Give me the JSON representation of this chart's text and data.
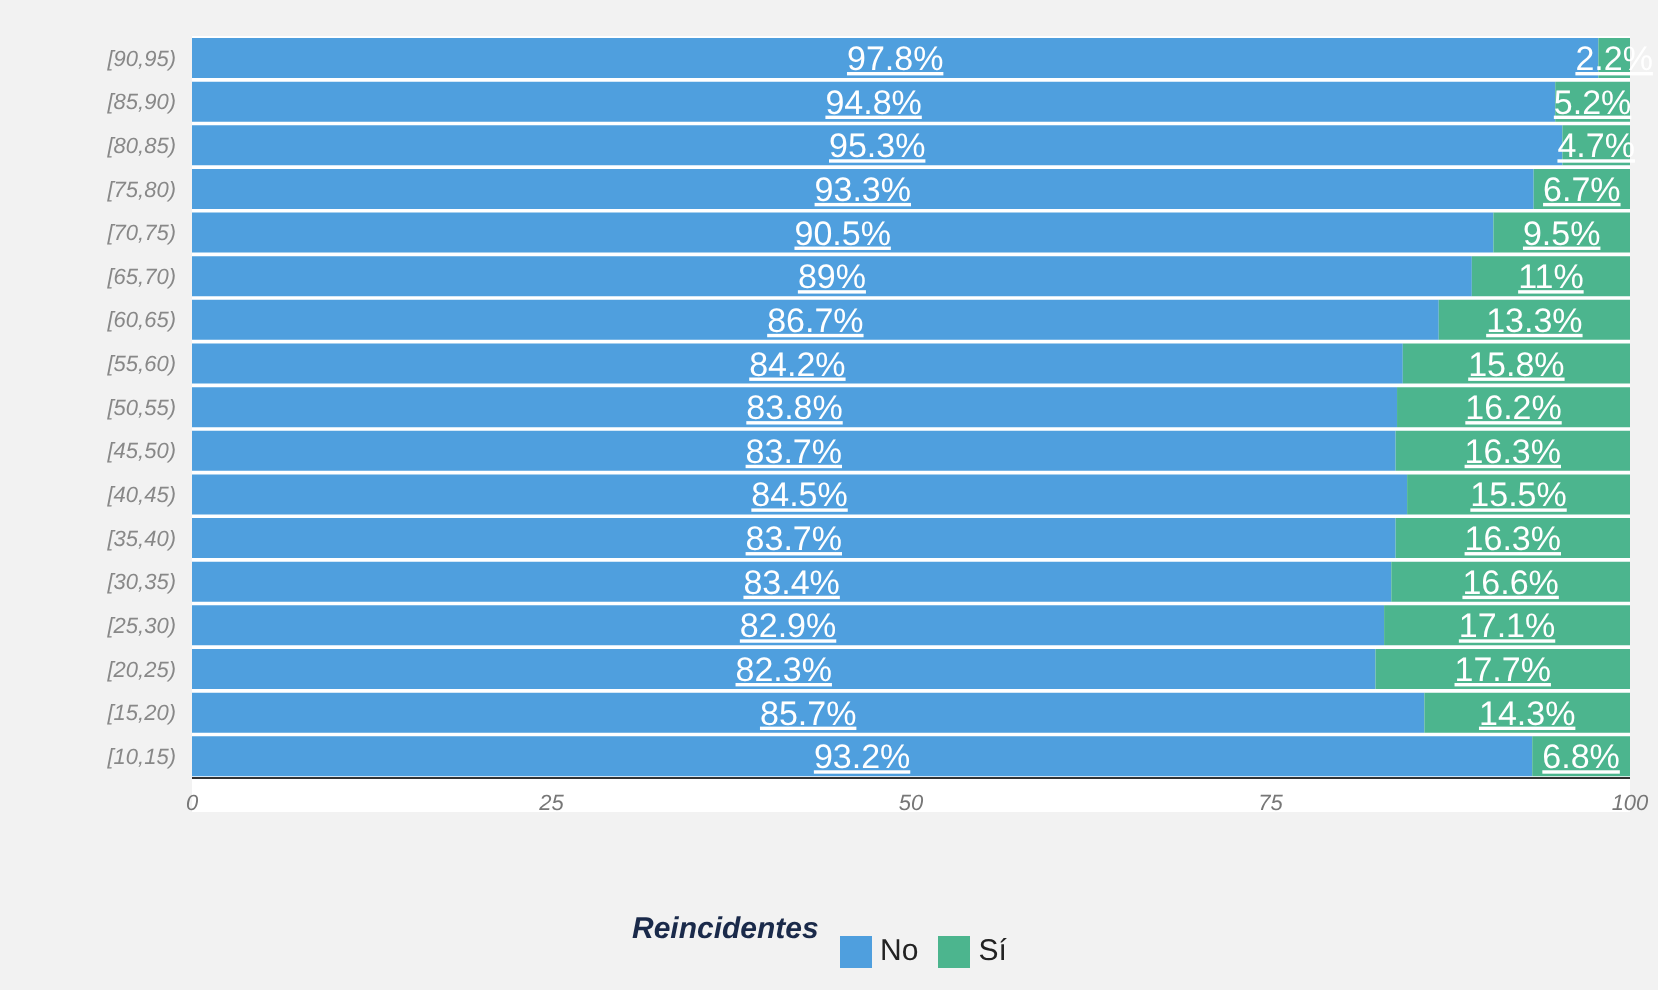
{
  "chart_data": {
    "type": "bar",
    "orientation": "horizontal",
    "stacked": true,
    "categories": [
      "[90,95)",
      "[85,90)",
      "[80,85)",
      "[75,80)",
      "[70,75)",
      "[65,70)",
      "[60,65)",
      "[55,60)",
      "[50,55)",
      "[45,50)",
      "[40,45)",
      "[35,40)",
      "[30,35)",
      "[25,30)",
      "[20,25)",
      "[15,20)",
      "[10,15)"
    ],
    "series": [
      {
        "name": "No",
        "color": "#4f9fde",
        "values": [
          97.8,
          94.8,
          95.3,
          93.3,
          90.5,
          89,
          86.7,
          84.2,
          83.8,
          83.7,
          84.5,
          83.7,
          83.4,
          82.9,
          82.3,
          85.7,
          93.2
        ],
        "value_labels": [
          "97.8%",
          "94.8%",
          "95.3%",
          "93.3%",
          "90.5%",
          "89%",
          "86.7%",
          "84.2%",
          "83.8%",
          "83.7%",
          "84.5%",
          "83.7%",
          "83.4%",
          "82.9%",
          "82.3%",
          "85.7%",
          "93.2%"
        ]
      },
      {
        "name": "Sí",
        "color": "#4cb58e",
        "values": [
          2.2,
          5.2,
          4.7,
          6.7,
          9.5,
          11,
          13.3,
          15.8,
          16.2,
          16.3,
          15.5,
          16.3,
          16.6,
          17.1,
          17.7,
          14.3,
          6.8
        ],
        "value_labels": [
          "2.2%",
          "5.2%",
          "4.7%",
          "6.7%",
          "9.5%",
          "11%",
          "13.3%",
          "15.8%",
          "16.2%",
          "16.3%",
          "15.5%",
          "16.3%",
          "16.6%",
          "17.1%",
          "17.7%",
          "14.3%",
          "6.8%"
        ]
      }
    ],
    "xlim": [
      0,
      100
    ],
    "xticks": [
      0,
      25,
      50,
      75,
      100
    ],
    "grid": false,
    "legend": "bottom",
    "legend_title": "Reincidentes"
  }
}
